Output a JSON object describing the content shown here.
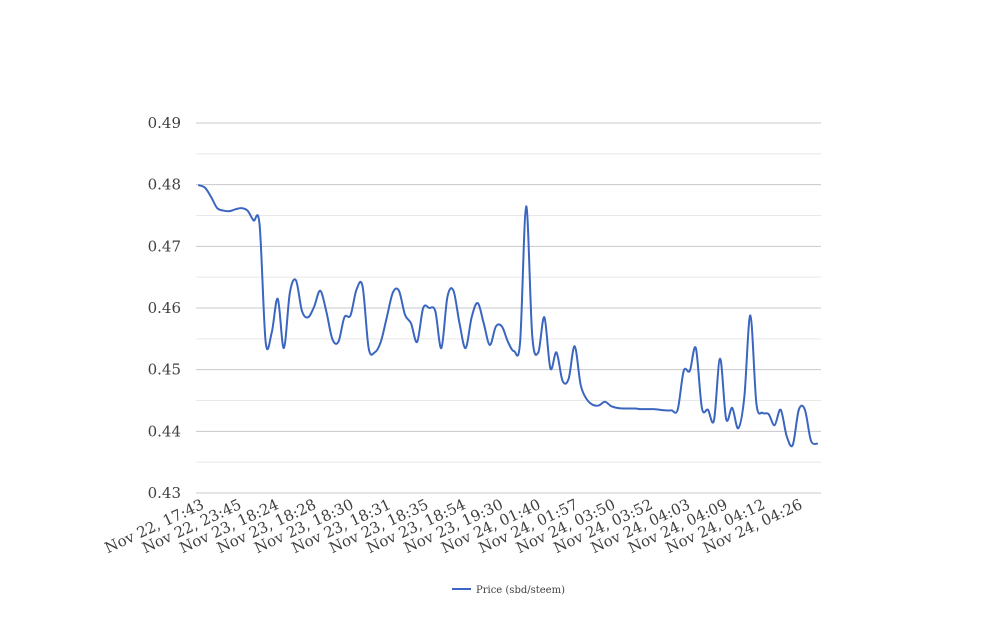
{
  "chart_data": {
    "type": "line",
    "title": "",
    "xlabel": "",
    "ylabel": "",
    "ylim": [
      0.43,
      0.49
    ],
    "yticks": [
      "0.43",
      "0.44",
      "0.45",
      "0.46",
      "0.47",
      "0.48",
      "0.49"
    ],
    "grid": "on",
    "legend_placement": "bottom",
    "line_color": "#3a66c0",
    "x_tick_labels": [
      "Nov 22, 17:43",
      "Nov 22, 23:45",
      "Nov 23, 18:24",
      "Nov 23, 18:28",
      "Nov 23, 18:30",
      "Nov 23, 18:31",
      "Nov 23, 18:35",
      "Nov 23, 18:54",
      "Nov 23, 19:30",
      "Nov 24, 01:40",
      "Nov 24, 01:57",
      "Nov 24, 03:50",
      "Nov 24, 03:52",
      "Nov 24, 04:03",
      "Nov 24, 04:09",
      "Nov 24, 04:12",
      "Nov 24, 04:26"
    ],
    "series": [
      {
        "name": "Price (sbd/steem)",
        "values": [
          0.4799,
          0.4795,
          0.478,
          0.4762,
          0.4758,
          0.4757,
          0.476,
          0.4762,
          0.4758,
          0.4742,
          0.4735,
          0.4545,
          0.456,
          0.4615,
          0.4535,
          0.4625,
          0.4645,
          0.4595,
          0.4585,
          0.4602,
          0.4628,
          0.4595,
          0.455,
          0.4545,
          0.4585,
          0.4588,
          0.463,
          0.4635,
          0.4535,
          0.4528,
          0.4545,
          0.4585,
          0.4625,
          0.4628,
          0.4589,
          0.4575,
          0.4545,
          0.46,
          0.46,
          0.4595,
          0.4535,
          0.4618,
          0.4628,
          0.4575,
          0.4535,
          0.4585,
          0.4608,
          0.4575,
          0.454,
          0.457,
          0.457,
          0.4545,
          0.453,
          0.4545,
          0.4765,
          0.4555,
          0.4528,
          0.4585,
          0.4502,
          0.4528,
          0.4482,
          0.4485,
          0.4538,
          0.4475,
          0.4452,
          0.4443,
          0.4442,
          0.4448,
          0.4441,
          0.4438,
          0.4437,
          0.4437,
          0.4437,
          0.4436,
          0.4436,
          0.4436,
          0.4435,
          0.4434,
          0.4434,
          0.4435,
          0.4498,
          0.4498,
          0.4535,
          0.4438,
          0.4435,
          0.4418,
          0.4518,
          0.442,
          0.4438,
          0.4405,
          0.4455,
          0.4588,
          0.4445,
          0.443,
          0.4428,
          0.441,
          0.4435,
          0.4392,
          0.4378,
          0.4435,
          0.4435,
          0.4385,
          0.438
        ]
      }
    ]
  }
}
